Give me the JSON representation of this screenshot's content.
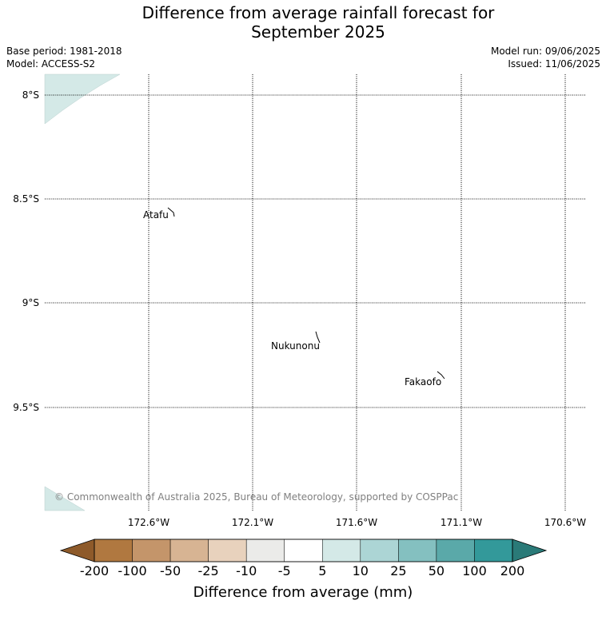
{
  "title_line1": "Difference from average rainfall forecast for",
  "title_line2": "September 2025",
  "base_period": "Base period: 1981-2018",
  "model": "Model: ACCESS-S2",
  "model_run": "Model run: 09/06/2025",
  "issued": "Issued: 11/06/2025",
  "lat_labels": [
    "8°S",
    "8.5°S",
    "9°S",
    "9.5°S"
  ],
  "lon_labels": [
    "172.6°W",
    "172.1°W",
    "171.6°W",
    "171.1°W",
    "170.6°W"
  ],
  "places": [
    "Atafu",
    "Nukunonu",
    "Fakaofo"
  ],
  "copyright": "© Commonwealth of Australia 2025, Bureau of Meteorology, supported by COSPPac",
  "colorbar": {
    "ticks": [
      "-200",
      "-100",
      "-50",
      "-25",
      "-10",
      "-5",
      "5",
      "10",
      "25",
      "50",
      "100",
      "200"
    ],
    "label": "Difference from average (mm)",
    "colors": [
      "#8e5a2a",
      "#b07840",
      "#c4956a",
      "#d7b493",
      "#e8d2bd",
      "#ebebe9",
      "#ffffff",
      "#d4e9e7",
      "#acd5d5",
      "#84c0c0",
      "#5aa9a9",
      "#33999a",
      "#2a7a78"
    ]
  },
  "fill_color": "#d4e9e7"
}
